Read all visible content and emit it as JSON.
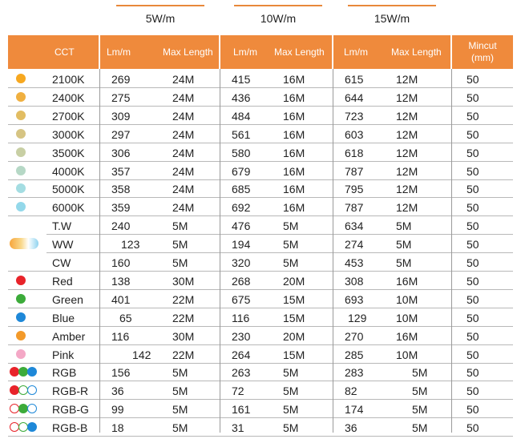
{
  "groups": {
    "w5": "5W/m",
    "w10": "10W/m",
    "w15": "15W/m"
  },
  "header": {
    "cct": "CCT",
    "lm5": "Lm/m",
    "len5": "Max Length",
    "lm10": "Lm/m",
    "len10": "Max Length",
    "lm15": "Lm/m",
    "len15": "Max Length",
    "mincut_1": "Mincut",
    "mincut_2": "(mm)"
  },
  "rows": [
    {
      "name": "2100K",
      "lm5": "269",
      "len5": "24M",
      "lm10": "415",
      "len10": "16M",
      "lm15": "615",
      "len15": "12M",
      "mincut": "50",
      "swatch": "#f7a820"
    },
    {
      "name": "2400K",
      "lm5": "275",
      "len5": "24M",
      "lm10": "436",
      "len10": "16M",
      "lm15": "644",
      "len15": "12M",
      "mincut": "50",
      "swatch": "#f0b040"
    },
    {
      "name": "2700K",
      "lm5": "309",
      "len5": "24M",
      "lm10": "484",
      "len10": "16M",
      "lm15": "723",
      "len15": "12M",
      "mincut": "50",
      "swatch": "#e2bd62"
    },
    {
      "name": "3000K",
      "lm5": "297",
      "len5": "24M",
      "lm10": "561",
      "len10": "16M",
      "lm15": "603",
      "len15": "12M",
      "mincut": "50",
      "swatch": "#d6c483"
    },
    {
      "name": "3500K",
      "lm5": "306",
      "len5": "24M",
      "lm10": "580",
      "len10": "16M",
      "lm15": "618",
      "len15": "12M",
      "mincut": "50",
      "swatch": "#c8cfa4"
    },
    {
      "name": "4000K",
      "lm5": "357",
      "len5": "24M",
      "lm10": "679",
      "len10": "16M",
      "lm15": "787",
      "len15": "12M",
      "mincut": "50",
      "swatch": "#b6d8c6"
    },
    {
      "name": "5000K",
      "lm5": "358",
      "len5": "24M",
      "lm10": "685",
      "len10": "16M",
      "lm15": "795",
      "len15": "12M",
      "mincut": "50",
      "swatch": "#a4dde2"
    },
    {
      "name": "6000K",
      "lm5": "359",
      "len5": "24M",
      "lm10": "692",
      "len10": "16M",
      "lm15": "787",
      "len15": "12M",
      "mincut": "50",
      "swatch": "#93d8ea"
    },
    {
      "name": "T.W",
      "lm5": "240",
      "len5": "5M",
      "lm10": "476",
      "len10": "5M",
      "lm15": "634",
      "len15": "5M",
      "mincut": "50"
    },
    {
      "name": "WW",
      "lm5": "123",
      "len5": "5M",
      "lm10": "194",
      "len10": "5M",
      "lm15": "274",
      "len15": "5M",
      "mincut": "50"
    },
    {
      "name": "CW",
      "lm5": "160",
      "len5": "5M",
      "lm10": "320",
      "len10": "5M",
      "lm15": "453",
      "len15": "5M",
      "mincut": "50"
    },
    {
      "name": "Red",
      "lm5": "138",
      "len5": "30M",
      "lm10": "268",
      "len10": "20M",
      "lm15": "308",
      "len15": "16M",
      "mincut": "50",
      "swatch": "#e8232a"
    },
    {
      "name": "Green",
      "lm5": "401",
      "len5": "22M",
      "lm10": "675",
      "len10": "15M",
      "lm15": "693",
      "len15": "10M",
      "mincut": "50",
      "swatch": "#3cab3a"
    },
    {
      "name": "Blue",
      "lm5": "65",
      "len5": "22M",
      "lm10": "116",
      "len10": "15M",
      "lm15": "129",
      "len15": "10M",
      "mincut": "50",
      "swatch": "#1e88d8"
    },
    {
      "name": "Amber",
      "lm5": "116",
      "len5": "30M",
      "lm10": "230",
      "len10": "20M",
      "lm15": "270",
      "len15": "16M",
      "mincut": "50",
      "swatch": "#f39a2a"
    },
    {
      "name": "Pink",
      "lm5": "142",
      "len5": "22M",
      "lm10": "264",
      "len10": "15M",
      "lm15": "285",
      "len15": "10M",
      "mincut": "50",
      "swatch": "#f4a8c6"
    },
    {
      "name": "RGB",
      "lm5": "156",
      "len5": "5M",
      "lm10": "263",
      "len10": "5M",
      "lm15": "283",
      "len15": "5M",
      "mincut": "50"
    },
    {
      "name": "RGB-R",
      "lm5": "36",
      "len5": "5M",
      "lm10": "72",
      "len10": "5M",
      "lm15": "82",
      "len15": "5M",
      "mincut": "50"
    },
    {
      "name": "RGB-G",
      "lm5": "99",
      "len5": "5M",
      "lm10": "161",
      "len10": "5M",
      "lm15": "174",
      "len15": "5M",
      "mincut": "50"
    },
    {
      "name": "RGB-B",
      "lm5": "18",
      "len5": "5M",
      "lm10": "31",
      "len10": "5M",
      "lm15": "36",
      "len15": "5M",
      "mincut": "50"
    }
  ],
  "colors": {
    "header_bg": "#ef8a3c",
    "accent_line": "#e8883a",
    "rgb_red": "#e8232a",
    "rgb_green": "#3cab3a",
    "rgb_blue": "#1e88d8"
  }
}
